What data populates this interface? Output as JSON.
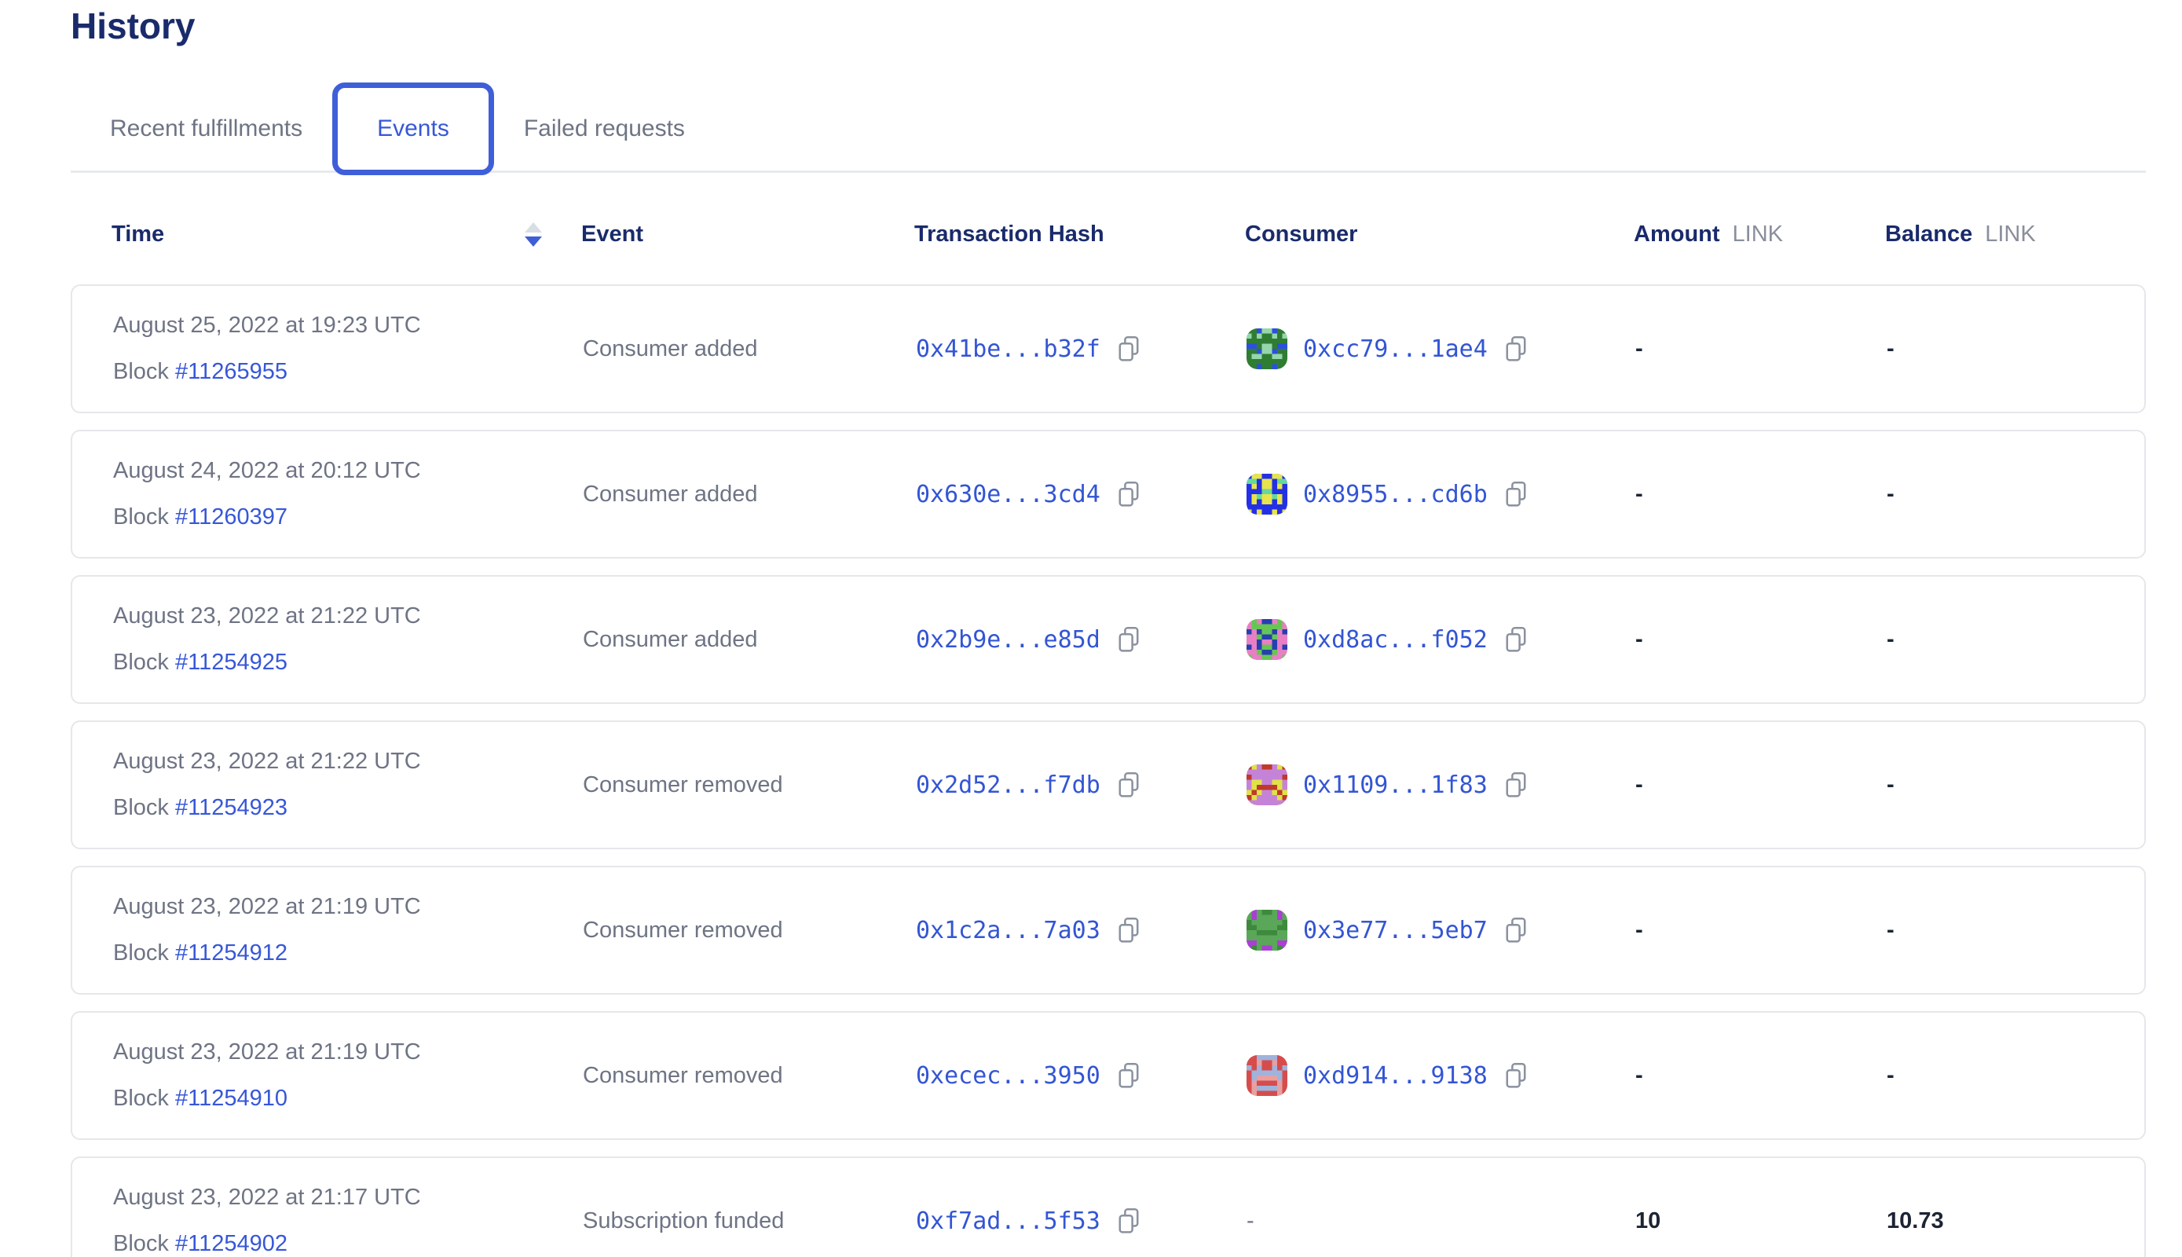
{
  "page": {
    "title": "History"
  },
  "tabs": [
    {
      "label": "Recent fulfillments",
      "active": false
    },
    {
      "label": "Events",
      "active": true
    },
    {
      "label": "Failed requests",
      "active": false
    }
  ],
  "table": {
    "columns": [
      {
        "label": "Time",
        "sort": "desc"
      },
      {
        "label": "Event"
      },
      {
        "label": "Transaction Hash"
      },
      {
        "label": "Consumer"
      },
      {
        "label": "Amount",
        "unit": "LINK"
      },
      {
        "label": "Balance",
        "unit": "LINK"
      }
    ],
    "rows": [
      {
        "date": "August 25, 2022 at 19:23 UTC",
        "block_label": "Block",
        "block_number": "#11265955",
        "event": "Consumer added",
        "tx_hash": "0x41be...b32f",
        "consumer": {
          "address": "0xcc79...1ae4",
          "palette": [
            "#2f7d32",
            "#2d4fe0",
            "#96d6ab"
          ]
        },
        "amount": "-",
        "balance": "-"
      },
      {
        "date": "August 24, 2022 at 20:12 UTC",
        "block_label": "Block",
        "block_number": "#11260397",
        "event": "Consumer added",
        "tx_hash": "0x630e...3cd4",
        "consumer": {
          "address": "0x8955...cd6b",
          "palette": [
            "#2430e6",
            "#e8e44c",
            "#66d89c"
          ]
        },
        "amount": "-",
        "balance": "-"
      },
      {
        "date": "August 23, 2022 at 21:22 UTC",
        "block_label": "Block",
        "block_number": "#11254925",
        "event": "Consumer added",
        "tx_hash": "0x2b9e...e85d",
        "consumer": {
          "address": "0xd8ac...f052",
          "palette": [
            "#66c653",
            "#e87fc4",
            "#2640b0"
          ]
        },
        "amount": "-",
        "balance": "-"
      },
      {
        "date": "August 23, 2022 at 21:22 UTC",
        "block_label": "Block",
        "block_number": "#11254923",
        "event": "Consumer removed",
        "tx_hash": "0x2d52...f7db",
        "consumer": {
          "address": "0x1109...1f83",
          "palette": [
            "#c583d8",
            "#e0e246",
            "#c0392b"
          ]
        },
        "amount": "-",
        "balance": "-"
      },
      {
        "date": "August 23, 2022 at 21:19 UTC",
        "block_label": "Block",
        "block_number": "#11254912",
        "event": "Consumer removed",
        "tx_hash": "0x1c2a...7a03",
        "consumer": {
          "address": "0x3e77...5eb7",
          "palette": [
            "#5aa75a",
            "#ab3fd4",
            "#3d8a3d"
          ]
        },
        "amount": "-",
        "balance": "-"
      },
      {
        "date": "August 23, 2022 at 21:19 UTC",
        "block_label": "Block",
        "block_number": "#11254910",
        "event": "Consumer removed",
        "tx_hash": "0xecec...3950",
        "consumer": {
          "address": "0xd914...9138",
          "palette": [
            "#d64c4c",
            "#9fb3dc",
            "#e8a0a0"
          ]
        },
        "amount": "-",
        "balance": "-"
      },
      {
        "date": "August 23, 2022 at 21:17 UTC",
        "block_label": "Block",
        "block_number": "#11254902",
        "event": "Subscription funded",
        "tx_hash": "0xf7ad...5f53",
        "consumer": {
          "address": "-"
        },
        "amount": "10",
        "balance": "10.73"
      }
    ]
  },
  "icons": {
    "copy": "copy-icon (two overlapping rounded squares)",
    "sort_asc": "▲",
    "sort_desc": "▼"
  },
  "colors": {
    "accent_blue": "#3757d8",
    "heading_navy": "#1a2b6b",
    "text_gray": "#6e7484",
    "value_dark": "#1c2434",
    "border_gray": "#e5e7ea"
  }
}
